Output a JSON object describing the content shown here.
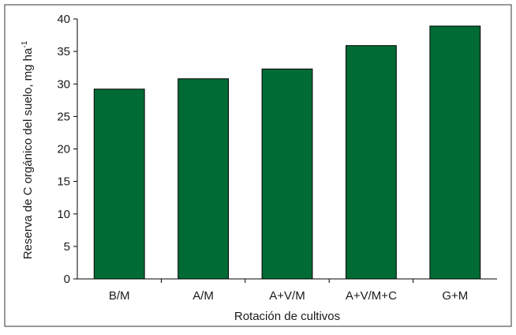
{
  "chart_data": {
    "type": "bar",
    "title": "",
    "xlabel": "Rotación de cultivos",
    "ylabel_main": "Reserva de C orgánico del suelo, mg ha",
    "ylabel_sup": "-1",
    "categories": [
      "B/M",
      "A/M",
      "A+V/M",
      "A+V/M+C",
      "G+M"
    ],
    "values": [
      29.2,
      30.8,
      32.3,
      35.9,
      38.9
    ],
    "ylim": [
      0,
      40
    ],
    "yticks": [
      "0",
      "5",
      "10",
      "15",
      "20",
      "25",
      "30",
      "35",
      "40"
    ],
    "grid": false,
    "legend": "none",
    "bar_color": "#006b35"
  }
}
